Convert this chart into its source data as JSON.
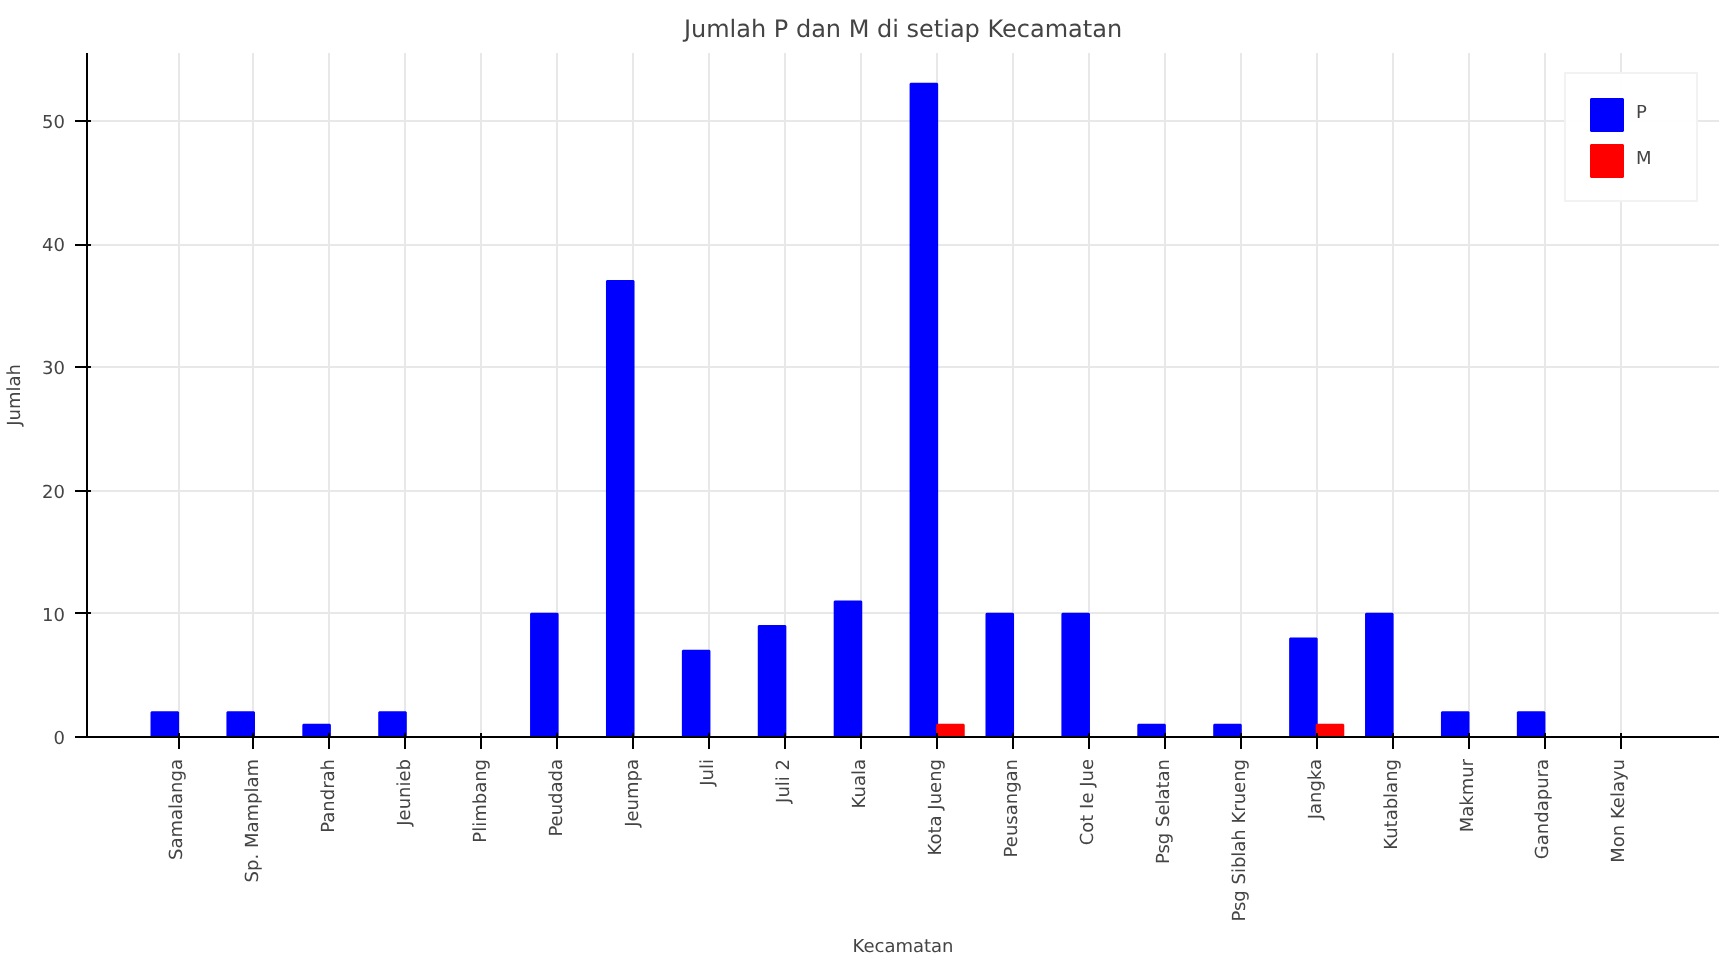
{
  "chart_data": {
    "type": "bar",
    "title": "Jumlah P dan M di setiap Kecamatan",
    "xlabel": "Kecamatan",
    "ylabel": "Jumlah",
    "categories": [
      "Samalanga",
      "Sp. Mamplam",
      "Pandrah",
      "Jeunieb",
      "Plimbang",
      "Peudada",
      "Jeumpa",
      "Juli",
      "Juli 2",
      "Kuala",
      "Kota Jueng",
      "Peusangan",
      "Cot Ie Jue",
      "Psg Selatan",
      "Psg Siblah Krueng",
      "Jangka",
      "Kutablang",
      "Makmur",
      "Gandapura",
      "Mon Kelayu"
    ],
    "series": [
      {
        "name": "P",
        "color": "#0000ff",
        "values": [
          2,
          2,
          1,
          2,
          0,
          10,
          37,
          7,
          9,
          11,
          53,
          10,
          10,
          1,
          1,
          8,
          10,
          2,
          2,
          0
        ]
      },
      {
        "name": "M",
        "color": "#ff0000",
        "values": [
          0,
          0,
          0,
          0,
          0,
          0,
          0,
          0,
          0,
          0,
          1,
          0,
          0,
          0,
          0,
          1,
          0,
          0,
          0,
          0
        ]
      }
    ],
    "ylim": [
      0,
      55.5
    ],
    "yticks": [
      0,
      10,
      20,
      30,
      40,
      50
    ],
    "grid": true,
    "legend": "top right"
  }
}
